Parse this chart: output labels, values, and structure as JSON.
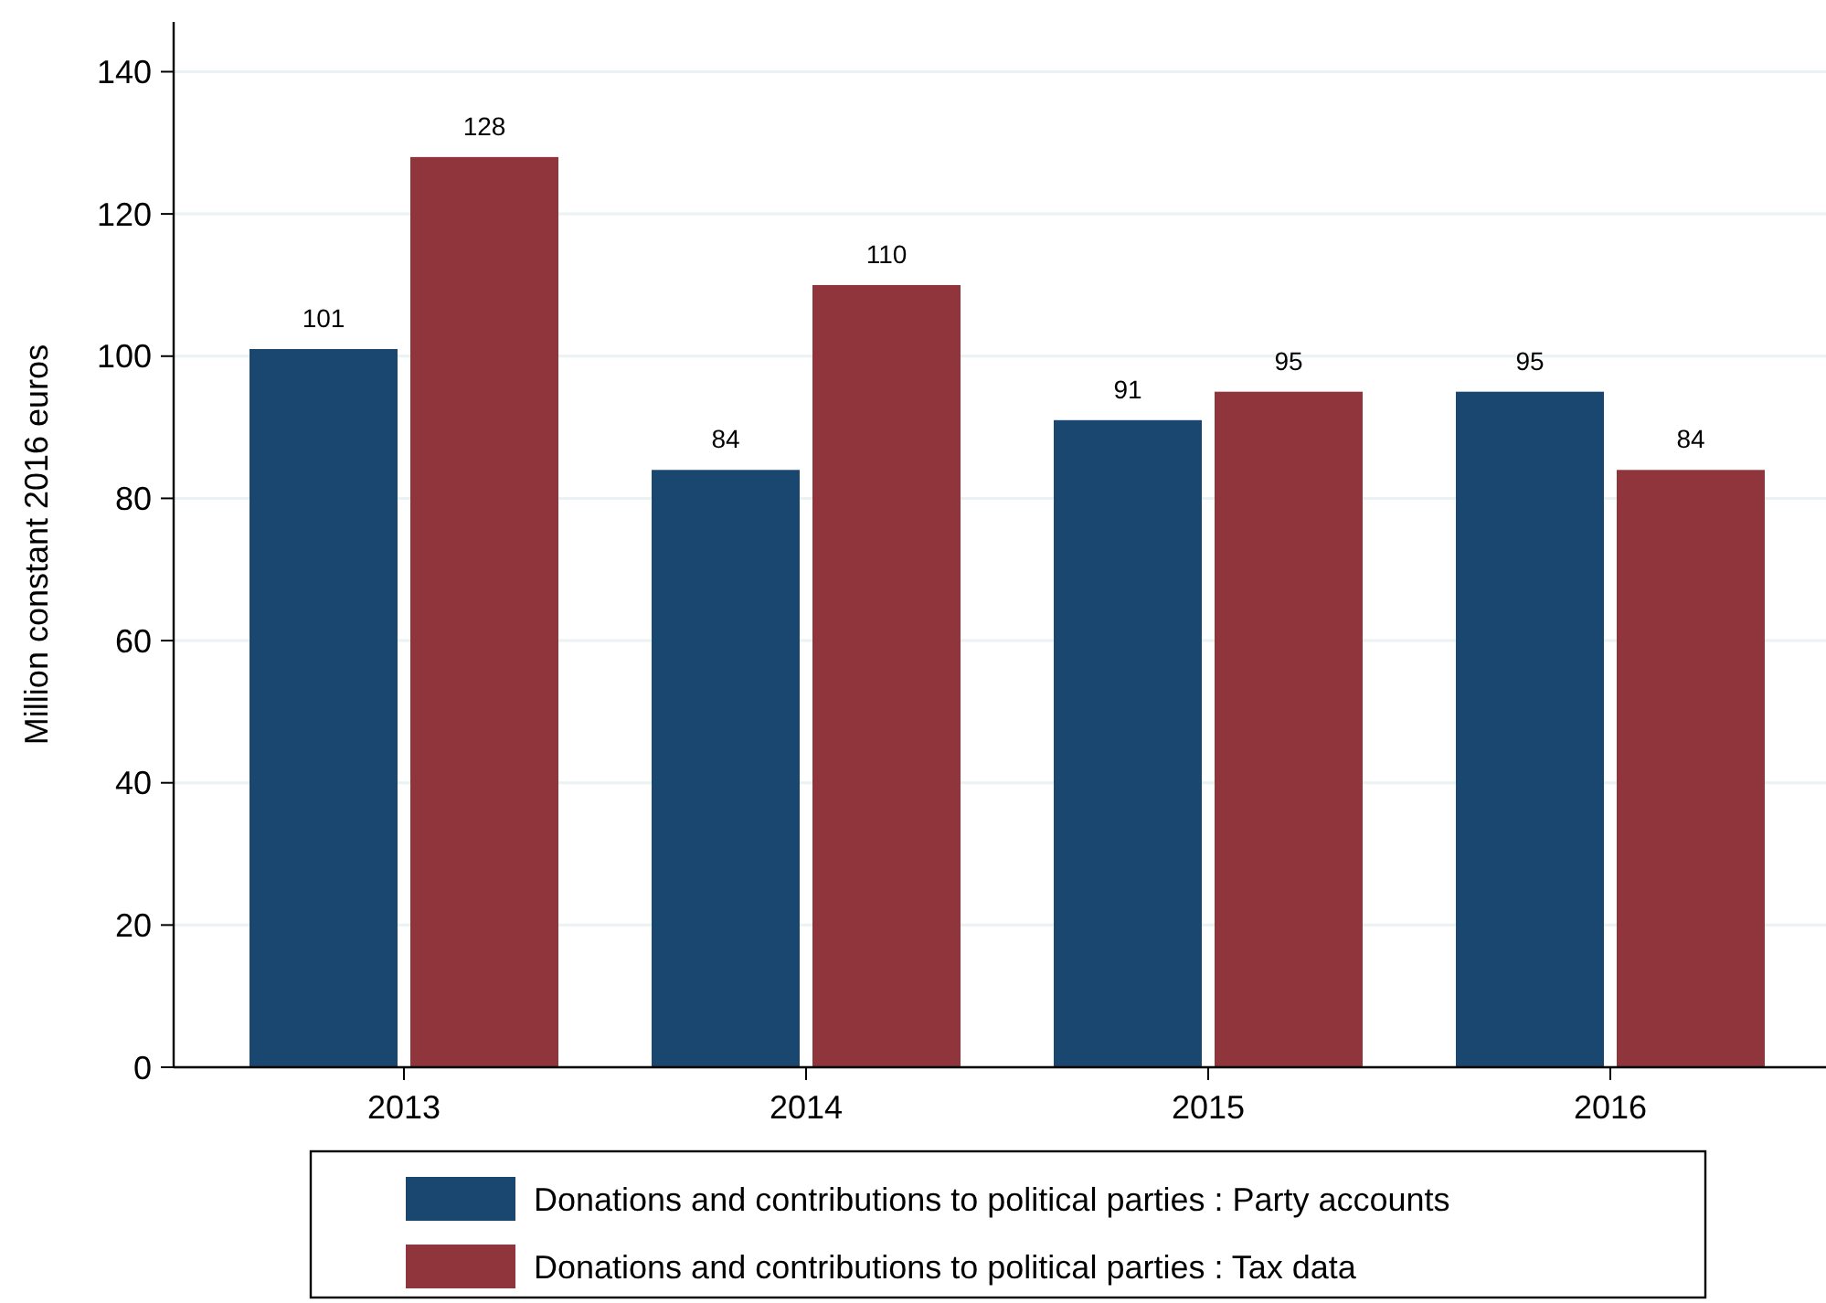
{
  "chart_data": {
    "type": "bar",
    "ylabel": "Million constant 2016 euros",
    "categories": [
      "2013",
      "2014",
      "2015",
      "2016"
    ],
    "series": [
      {
        "name": "Donations and contributions to political parties : Party accounts",
        "color": "#1a476f",
        "values": [
          101,
          84,
          91,
          95
        ]
      },
      {
        "name": "Donations and contributions to political parties : Tax data",
        "color": "#90353b",
        "values": [
          128,
          110,
          95,
          84
        ]
      }
    ],
    "ylim": [
      0,
      147
    ],
    "yticks": [
      0,
      20,
      40,
      60,
      80,
      100,
      120,
      140
    ],
    "grid": "y",
    "legend": "bottom",
    "data_labels": true
  }
}
